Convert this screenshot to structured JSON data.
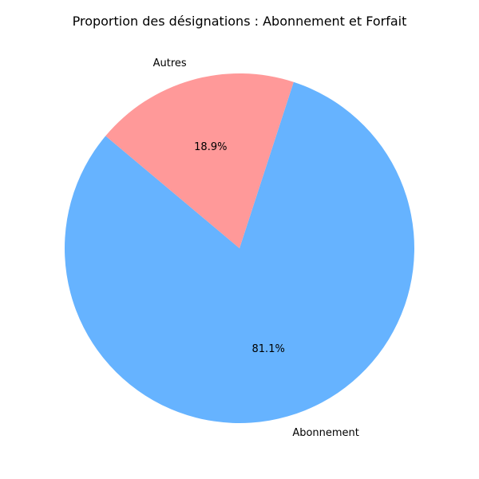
{
  "chart_data": {
    "type": "pie",
    "title": "Proportion des désignations : Abonnement et Forfait",
    "categories": [
      "Abonnement",
      "Autres"
    ],
    "values": [
      81.1,
      18.9
    ],
    "labels": [
      "81.1%",
      "18.9%"
    ],
    "colors": [
      "#66b3ff",
      "#ff9999"
    ],
    "start_angle_deg": 140,
    "legend": "none"
  }
}
